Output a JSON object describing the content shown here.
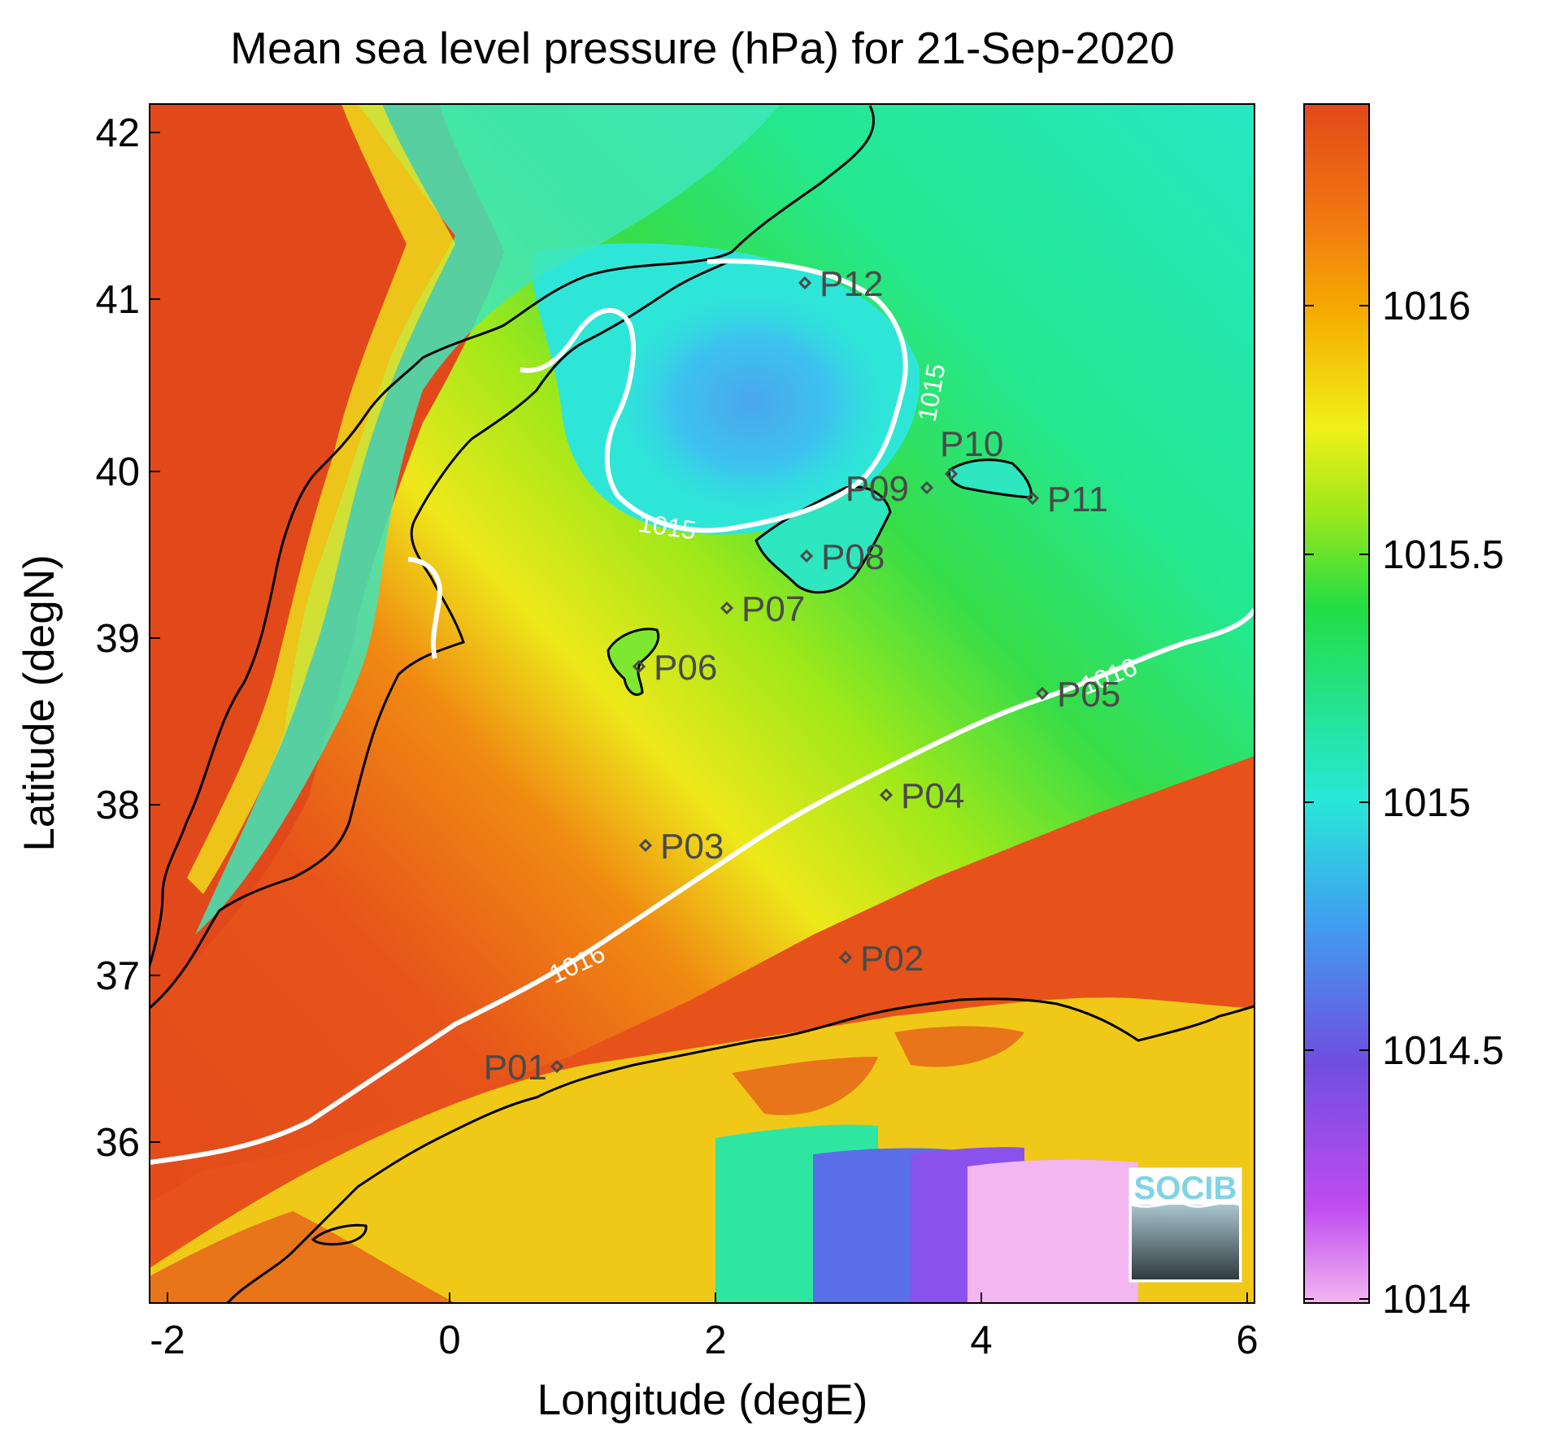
{
  "title": "Mean sea level pressure (hPa) for 21-Sep-2020",
  "xaxis": {
    "label": "Longitude (degE)",
    "ticks": [
      "-2",
      "0",
      "2",
      "4",
      "6"
    ]
  },
  "yaxis": {
    "label": "Latitude (degN)",
    "ticks": [
      "42",
      "41",
      "40",
      "39",
      "38",
      "37",
      "36"
    ]
  },
  "colorbar": {
    "ticks": [
      "1016",
      "1015.5",
      "1015",
      "1014.5",
      "1014"
    ],
    "range": [
      1014,
      1016.4
    ],
    "colors": [
      "#f3b6f0",
      "#c04cf0",
      "#6f4ee0",
      "#3fa0f0",
      "#27e8d8",
      "#22dd44",
      "#9ee81a",
      "#f0f01a",
      "#f5b000",
      "#f27a10",
      "#e2491a"
    ]
  },
  "contours": [
    {
      "label": "1015"
    },
    {
      "label": "1016"
    }
  ],
  "stations": [
    {
      "label": "P01"
    },
    {
      "label": "P02"
    },
    {
      "label": "P03"
    },
    {
      "label": "P04"
    },
    {
      "label": "P05"
    },
    {
      "label": "P06"
    },
    {
      "label": "P07"
    },
    {
      "label": "P08"
    },
    {
      "label": "P09"
    },
    {
      "label": "P10"
    },
    {
      "label": "P11"
    },
    {
      "label": "P12"
    }
  ],
  "logo": {
    "text": "SOCIB"
  }
}
